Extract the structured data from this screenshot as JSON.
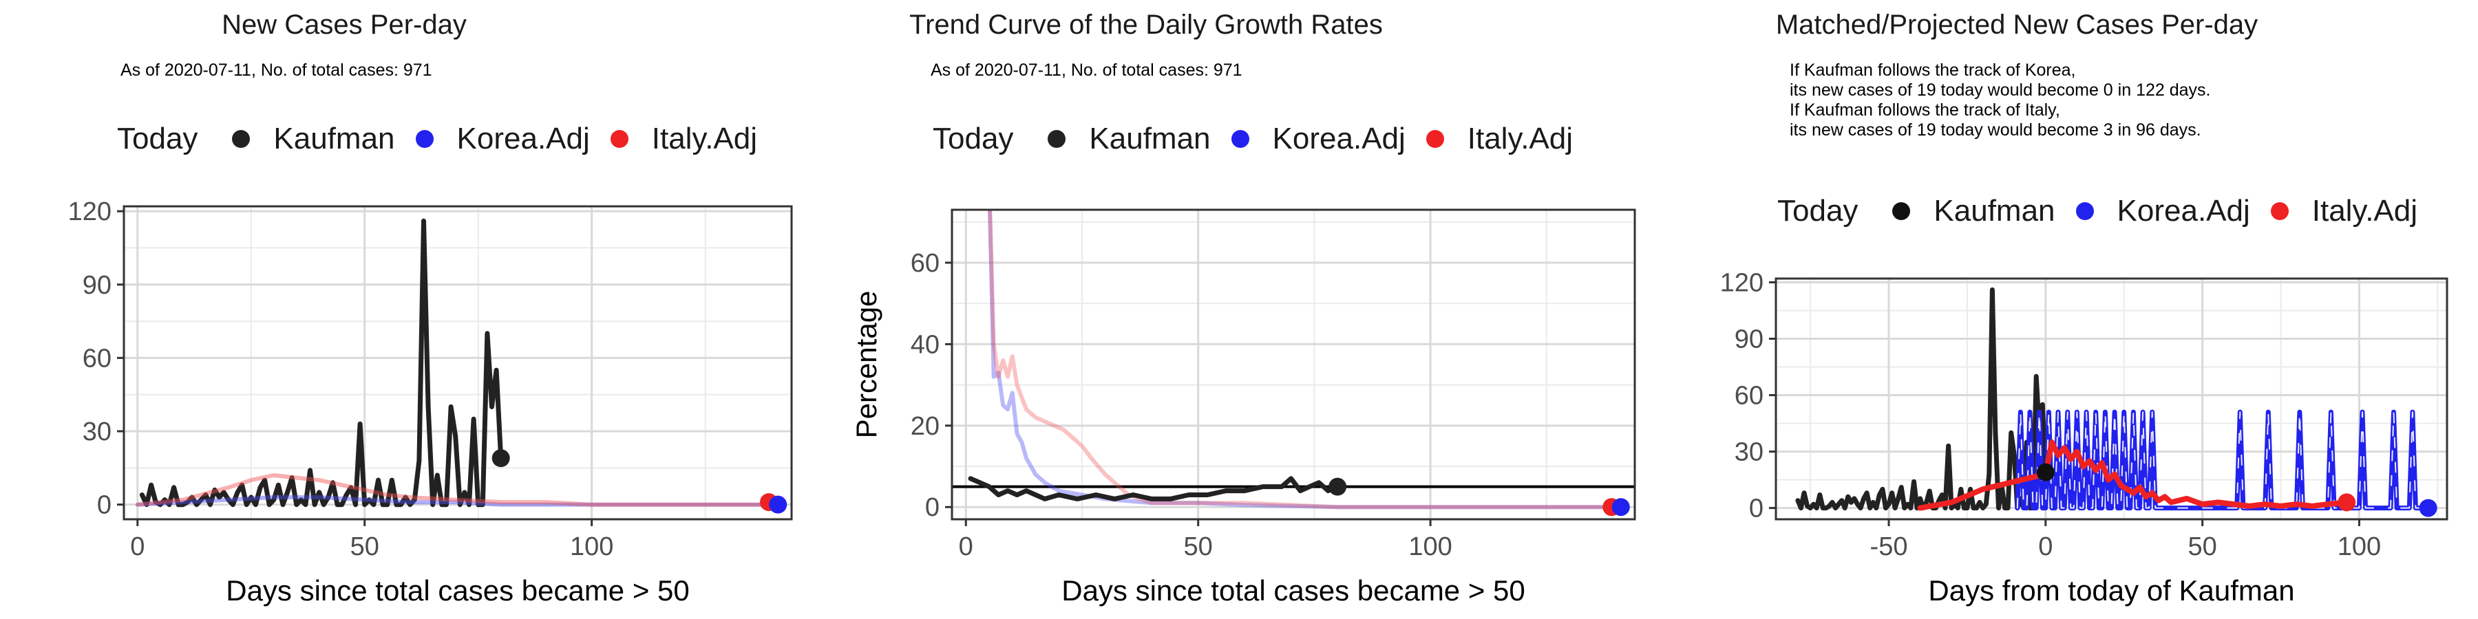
{
  "colors": {
    "today": "#1a1a1a",
    "kaufman": "#222222",
    "korea": "#2222ee",
    "italy": "#ee2222"
  },
  "panels": [
    {
      "title": "New Cases Per-day",
      "note": "As of 2020-07-11, No. of total cases: 971",
      "legend": {
        "title": "Today",
        "items": [
          "Kaufman",
          "Korea.Adj",
          "Italy.Adj"
        ]
      }
    },
    {
      "title": "Trend Curve of the Daily Growth Rates",
      "note": "As of 2020-07-11, No. of total cases: 971",
      "legend": {
        "title": "Today",
        "items": [
          "Kaufman",
          "Korea.Adj",
          "Italy.Adj"
        ]
      }
    },
    {
      "title": "Matched/Projected New Cases Per-day",
      "note": "If Kaufman follows the track of Korea,\nits new cases of 19 today would become 0 in 122 days.\nIf Kaufman follows the track of Italy,\nits new cases of 19 today would become 3 in 96 days.",
      "legend": {
        "title": "Today",
        "items": [
          "Kaufman",
          "Korea.Adj",
          "Italy.Adj"
        ]
      }
    }
  ],
  "chart_data": [
    {
      "type": "line",
      "title": "New Cases Per-day",
      "xlabel": "Days since total cases became > 50",
      "ylabel": "",
      "xlim": [
        -3,
        144
      ],
      "ylim": [
        -6,
        122
      ],
      "xticks": [
        0,
        50,
        100
      ],
      "yticks": [
        0,
        30,
        60,
        90,
        120
      ],
      "grid": true,
      "legend_position": "top",
      "series": [
        {
          "name": "Kaufman",
          "color": "#222222",
          "width": 7,
          "x": [
            1,
            2,
            3,
            4,
            5,
            6,
            7,
            8,
            9,
            10,
            11,
            12,
            13,
            14,
            15,
            16,
            17,
            18,
            19,
            20,
            21,
            22,
            23,
            24,
            25,
            26,
            27,
            28,
            29,
            30,
            31,
            32,
            33,
            34,
            35,
            36,
            37,
            38,
            39,
            40,
            41,
            42,
            43,
            44,
            45,
            46,
            47,
            48,
            49,
            50,
            51,
            52,
            53,
            54,
            55,
            56,
            57,
            58,
            59,
            60,
            61,
            62,
            63,
            64,
            65,
            66,
            67,
            68,
            69,
            70,
            71,
            72,
            73,
            74,
            75,
            76,
            77,
            78,
            79,
            80
          ],
          "y": [
            4,
            0,
            8,
            1,
            0,
            2,
            0,
            7,
            0,
            0,
            1,
            3,
            0,
            2,
            4,
            0,
            6,
            3,
            5,
            2,
            0,
            5,
            8,
            0,
            3,
            0,
            7,
            10,
            0,
            2,
            8,
            0,
            5,
            11,
            0,
            2,
            0,
            14,
            0,
            5,
            0,
            3,
            9,
            0,
            0,
            4,
            7,
            0,
            33,
            0,
            2,
            0,
            10,
            0,
            0,
            10,
            0,
            0,
            3,
            0,
            2,
            18,
            116,
            40,
            0,
            12,
            0,
            0,
            40,
            28,
            0,
            5,
            0,
            35,
            0,
            0,
            70,
            40,
            55,
            19
          ]
        },
        {
          "name": "Korea.Adj",
          "color": "#4f4ff0",
          "width": 6,
          "opacity": 0.45,
          "x": [
            0,
            10,
            20,
            30,
            40,
            50,
            60,
            70,
            80,
            90,
            100,
            110,
            120,
            130,
            141
          ],
          "y": [
            0,
            1,
            2,
            3,
            3,
            2,
            1,
            1,
            0,
            0,
            0,
            0,
            0,
            0,
            0
          ]
        },
        {
          "name": "Italy.Adj",
          "color": "#f04f4f",
          "width": 6,
          "opacity": 0.45,
          "x": [
            0,
            10,
            20,
            25,
            30,
            35,
            40,
            45,
            50,
            55,
            60,
            70,
            80,
            90,
            100,
            110,
            120,
            130,
            139
          ],
          "y": [
            0,
            2,
            7,
            10,
            12,
            11,
            10,
            8,
            6,
            4,
            3,
            2,
            1,
            1,
            0,
            0,
            0,
            0,
            0
          ]
        }
      ],
      "today_points": [
        {
          "x": 80,
          "y": 19,
          "color": "#222222"
        },
        {
          "x": 139,
          "y": 1,
          "color": "#ee2222"
        },
        {
          "x": 141,
          "y": 0,
          "color": "#2222ee"
        }
      ]
    },
    {
      "type": "line",
      "title": "Trend Curve of the Daily Growth Rates",
      "xlabel": "Days since total cases became > 50",
      "ylabel": "Percentage",
      "xlim": [
        -3,
        144
      ],
      "ylim": [
        -3,
        73
      ],
      "xticks": [
        0,
        50,
        100
      ],
      "yticks": [
        0,
        20,
        40,
        60
      ],
      "grid": true,
      "legend_position": "top",
      "hline": 5,
      "series": [
        {
          "name": "Korea.Adj",
          "color": "#4f4ff0",
          "width": 6,
          "opacity": 0.4,
          "x": [
            5,
            6,
            7,
            8,
            9,
            10,
            11,
            12,
            13,
            14,
            15,
            17,
            20,
            25,
            30,
            40,
            50,
            60,
            80,
            100,
            120,
            141
          ],
          "y": [
            80,
            32,
            33,
            25,
            24,
            28,
            18,
            16,
            12,
            10,
            8,
            6,
            4,
            3,
            2,
            1,
            1,
            0.5,
            0,
            0,
            0,
            0
          ]
        },
        {
          "name": "Italy.Adj",
          "color": "#f04f4f",
          "width": 6,
          "opacity": 0.35,
          "x": [
            5,
            6,
            7,
            8,
            9,
            10,
            11,
            12,
            13,
            14,
            15,
            17,
            19,
            21,
            23,
            25,
            27,
            30,
            35,
            40,
            50,
            60,
            80,
            100,
            120,
            139
          ],
          "y": [
            80,
            40,
            32,
            36,
            32,
            37,
            30,
            27,
            24,
            23,
            22,
            21,
            20,
            19,
            17,
            15,
            12,
            8,
            3,
            1,
            1,
            1,
            0,
            0,
            0,
            0
          ]
        },
        {
          "name": "Kaufman",
          "color": "#222222",
          "width": 7,
          "x": [
            1,
            3,
            5,
            7,
            9,
            11,
            13,
            15,
            17,
            20,
            24,
            28,
            32,
            36,
            40,
            44,
            48,
            52,
            56,
            60,
            64,
            68,
            70,
            72,
            74,
            76,
            78,
            80
          ],
          "y": [
            7,
            6,
            5,
            3,
            4,
            3,
            4,
            3,
            2,
            3,
            2,
            3,
            2,
            3,
            2,
            2,
            3,
            3,
            4,
            4,
            5,
            5,
            7,
            4,
            5,
            6,
            4,
            5
          ]
        }
      ],
      "today_points": [
        {
          "x": 80,
          "y": 5,
          "color": "#222222"
        },
        {
          "x": 139,
          "y": 0,
          "color": "#ee2222"
        },
        {
          "x": 141,
          "y": 0,
          "color": "#2222ee"
        }
      ]
    },
    {
      "type": "line",
      "title": "Matched/Projected New Cases Per-day",
      "xlabel": "Days from today of Kaufman",
      "ylabel": "",
      "xlim": [
        -86,
        128
      ],
      "ylim": [
        -6,
        122
      ],
      "xticks": [
        -50,
        0,
        50,
        100
      ],
      "yticks": [
        0,
        30,
        60,
        90,
        120
      ],
      "grid": true,
      "legend_position": "top",
      "series": [
        {
          "name": "Kaufman",
          "color": "#222222",
          "width": 7,
          "x": [
            -79,
            -78,
            -77,
            -76,
            -75,
            -74,
            -73,
            -72,
            -71,
            -70,
            -69,
            -68,
            -67,
            -66,
            -65,
            -64,
            -63,
            -62,
            -61,
            -60,
            -59,
            -58,
            -57,
            -56,
            -55,
            -54,
            -53,
            -52,
            -51,
            -50,
            -49,
            -48,
            -47,
            -46,
            -45,
            -44,
            -43,
            -42,
            -41,
            -40,
            -39,
            -38,
            -37,
            -36,
            -35,
            -34,
            -33,
            -32,
            -31,
            -30,
            -29,
            -28,
            -27,
            -26,
            -25,
            -24,
            -23,
            -22,
            -21,
            -20,
            -19,
            -18,
            -17,
            -16,
            -15,
            -14,
            -13,
            -12,
            -11,
            -10,
            -9,
            -8,
            -7,
            -6,
            -5,
            -4,
            -3,
            -2,
            -1,
            0
          ],
          "y": [
            4,
            0,
            8,
            1,
            0,
            2,
            0,
            7,
            0,
            0,
            1,
            3,
            0,
            2,
            4,
            0,
            6,
            3,
            5,
            2,
            0,
            5,
            8,
            0,
            3,
            0,
            7,
            10,
            0,
            2,
            8,
            0,
            5,
            11,
            0,
            2,
            0,
            14,
            0,
            5,
            0,
            3,
            9,
            0,
            0,
            4,
            7,
            0,
            33,
            0,
            2,
            0,
            10,
            0,
            0,
            10,
            0,
            0,
            3,
            0,
            2,
            18,
            116,
            40,
            0,
            12,
            0,
            0,
            40,
            28,
            0,
            5,
            0,
            35,
            0,
            0,
            70,
            40,
            55,
            19
          ]
        },
        {
          "name": "Korea.Adj",
          "color": "#2222ee",
          "width": 7,
          "dashed_peaks": true,
          "x": [
            -9,
            -8,
            -7,
            -6,
            -5,
            -4,
            -3,
            -2,
            -1,
            0,
            1,
            2,
            3,
            4,
            5,
            6,
            7,
            8,
            9,
            10,
            11,
            12,
            13,
            14,
            15,
            16,
            17,
            18,
            19,
            20,
            21,
            22,
            23,
            24,
            25,
            26,
            27,
            28,
            29,
            30,
            31,
            32,
            33,
            34,
            35,
            40,
            50,
            60,
            61,
            62,
            63,
            64,
            69,
            70,
            71,
            72,
            73,
            74,
            79,
            80,
            81,
            82,
            83,
            84,
            89,
            90,
            91,
            92,
            93,
            94,
            99,
            100,
            101,
            102,
            103,
            104,
            109,
            110,
            111,
            112,
            113,
            114,
            116,
            117,
            118,
            119,
            120,
            122
          ],
          "y": [
            0,
            51,
            0,
            0,
            51,
            0,
            0,
            51,
            0,
            0,
            51,
            0,
            0,
            51,
            0,
            0,
            51,
            0,
            0,
            51,
            0,
            0,
            51,
            0,
            0,
            51,
            0,
            0,
            51,
            0,
            0,
            51,
            0,
            0,
            51,
            0,
            0,
            51,
            0,
            0,
            51,
            0,
            0,
            51,
            0,
            0,
            0,
            0,
            0,
            51,
            0,
            0,
            0,
            0,
            51,
            0,
            0,
            0,
            0,
            0,
            51,
            0,
            0,
            0,
            0,
            0,
            51,
            0,
            0,
            0,
            0,
            0,
            51,
            0,
            0,
            0,
            0,
            0,
            51,
            0,
            0,
            0,
            0,
            51,
            0,
            0,
            0,
            0
          ]
        },
        {
          "name": "Italy.Adj",
          "color": "#ee2222",
          "width": 8,
          "x": [
            -40,
            -30,
            -20,
            -10,
            -5,
            0,
            2,
            4,
            6,
            8,
            10,
            12,
            14,
            16,
            18,
            20,
            22,
            24,
            26,
            28,
            30,
            32,
            34,
            36,
            38,
            40,
            45,
            50,
            55,
            60,
            65,
            70,
            75,
            80,
            85,
            90,
            96
          ],
          "y": [
            0,
            3,
            10,
            14,
            16,
            18,
            35,
            28,
            32,
            26,
            30,
            22,
            25,
            20,
            24,
            15,
            18,
            12,
            10,
            8,
            11,
            6,
            8,
            4,
            6,
            3,
            5,
            2,
            3,
            2,
            1,
            2,
            1,
            2,
            1,
            2,
            3
          ]
        }
      ],
      "today_points": [
        {
          "x": 0,
          "y": 19,
          "color": "#111111"
        },
        {
          "x": 96,
          "y": 3,
          "color": "#ee2222"
        },
        {
          "x": 122,
          "y": 0,
          "color": "#2222ee"
        }
      ]
    }
  ]
}
